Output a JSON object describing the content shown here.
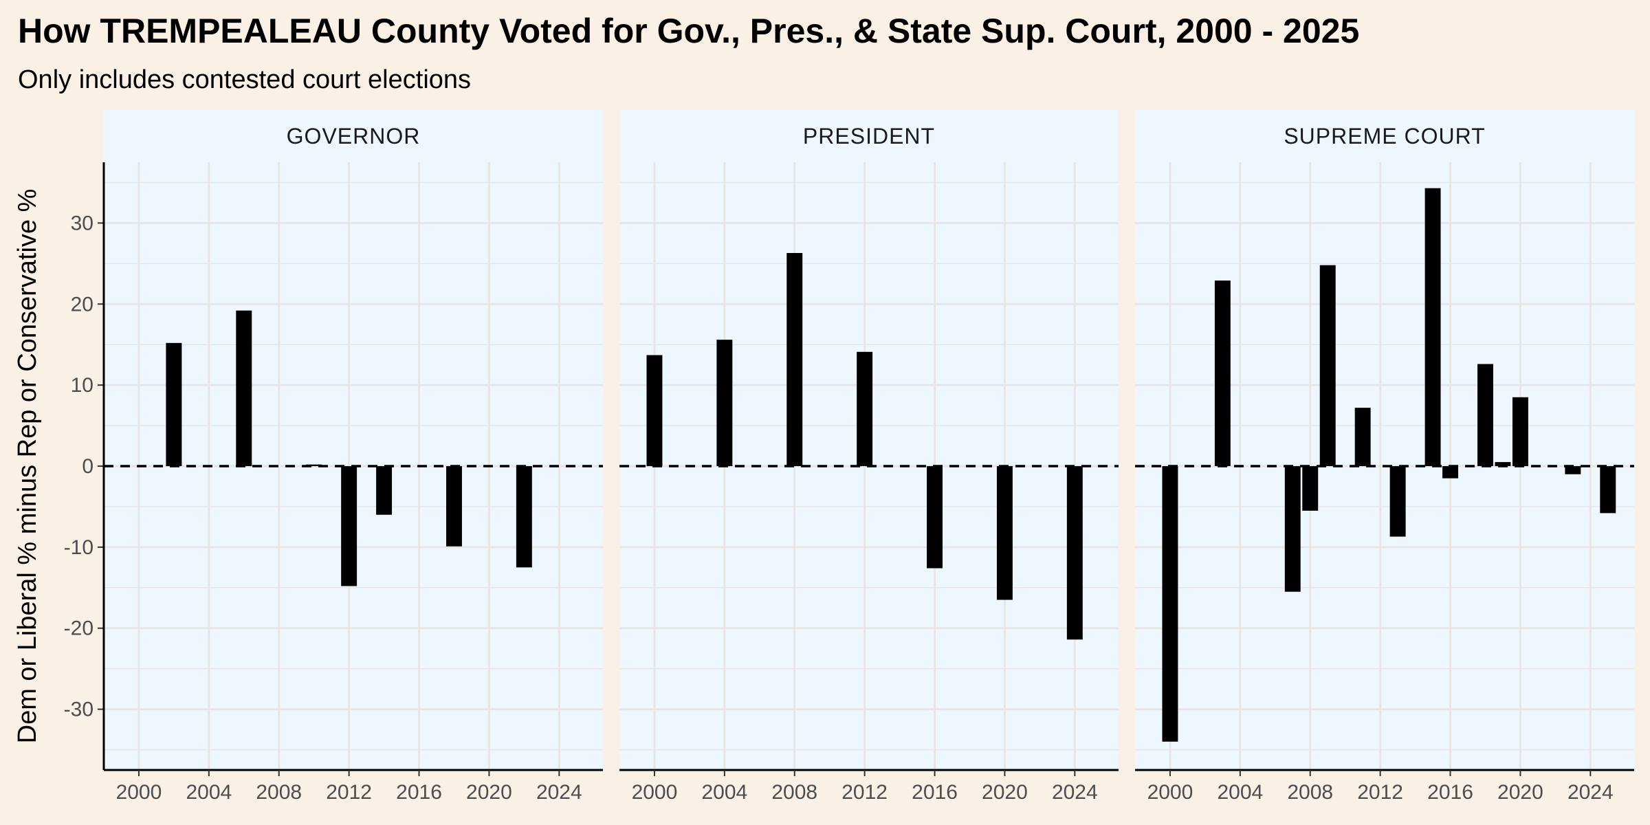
{
  "title": "How TREMPEALEAU County Voted for Gov., Pres., & State Sup. Court, 2000 - 2025",
  "subtitle": "Only includes contested court elections",
  "colors": {
    "background": "#faf0e6",
    "panel": "#eef6ff",
    "strip": "#eef6ff",
    "grid": "#e8e6e3",
    "bar": "#000000"
  },
  "chart_data": {
    "type": "bar",
    "ylabel": "Dem or Liberal % minus Rep or Conservative %",
    "xlim": [
      1998,
      2026.5
    ],
    "ylim": [
      -37.5,
      37.5
    ],
    "x_ticks": [
      2000,
      2004,
      2008,
      2012,
      2016,
      2020,
      2024
    ],
    "y_ticks": [
      -30,
      -20,
      -10,
      0,
      10,
      20,
      30
    ],
    "reference_line": {
      "y": 0,
      "style": "dashed"
    },
    "grid": true,
    "panels": [
      {
        "name": "GOVERNOR",
        "x": [
          2002,
          2006,
          2010,
          2012,
          2014,
          2018,
          2022
        ],
        "values": [
          15.2,
          19.2,
          0.2,
          -14.8,
          -6.0,
          -9.9,
          -12.5
        ]
      },
      {
        "name": "PRESIDENT",
        "x": [
          2000,
          2004,
          2008,
          2012,
          2016,
          2020,
          2024
        ],
        "values": [
          13.7,
          15.6,
          26.3,
          14.1,
          -12.6,
          -16.5,
          -21.4
        ]
      },
      {
        "name": "SUPREME COURT",
        "x": [
          2000,
          2003,
          2007,
          2008,
          2009,
          2011,
          2013,
          2015,
          2016,
          2018,
          2019,
          2020,
          2023,
          2025
        ],
        "values": [
          -34.0,
          22.9,
          -15.5,
          -5.5,
          24.8,
          7.2,
          -8.7,
          34.3,
          -1.5,
          12.6,
          0.5,
          8.5,
          -1.0,
          -5.8
        ]
      }
    ]
  }
}
